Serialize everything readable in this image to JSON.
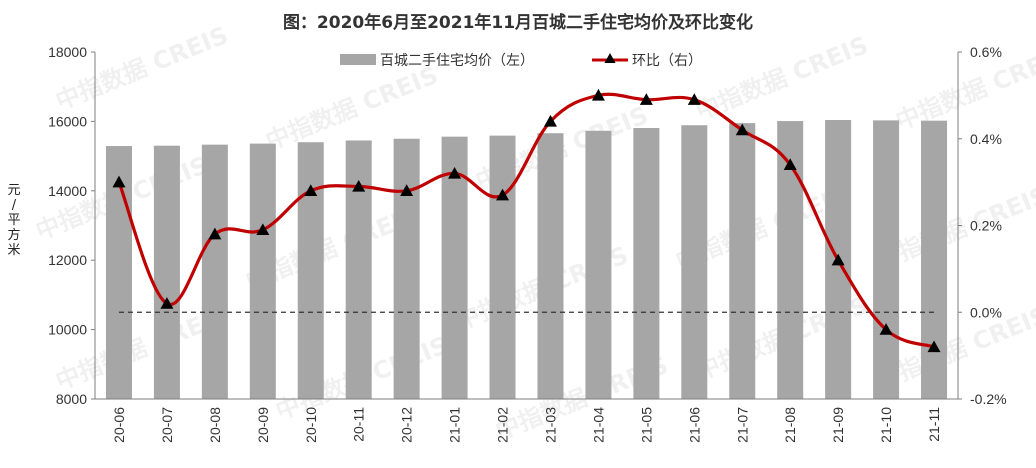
{
  "chart_data": {
    "type": "bar+line",
    "title": "图：2020年6月至2021年11月百城二手住宅均价及环比变化",
    "categories": [
      "20-06",
      "20-07",
      "20-08",
      "20-09",
      "20-10",
      "20-11",
      "20-12",
      "21-01",
      "21-02",
      "21-03",
      "21-04",
      "21-05",
      "21-06",
      "21-07",
      "21-08",
      "21-09",
      "21-10",
      "21-11"
    ],
    "series": [
      {
        "name": "百城二手住宅均价（左）",
        "type": "bar",
        "axis": "left",
        "color": "#a6a6a6",
        "values": [
          15290,
          15300,
          15330,
          15360,
          15400,
          15450,
          15500,
          15560,
          15590,
          15660,
          15730,
          15810,
          15890,
          15950,
          16010,
          16040,
          16030,
          16020
        ]
      },
      {
        "name": "环比（右）",
        "type": "line",
        "axis": "right",
        "color": "#c00000",
        "marker": "triangle",
        "values": [
          0.3,
          0.02,
          0.18,
          0.19,
          0.28,
          0.29,
          0.28,
          0.32,
          0.27,
          0.44,
          0.5,
          0.49,
          0.49,
          0.42,
          0.34,
          0.12,
          -0.04,
          -0.08
        ]
      }
    ],
    "y_left": {
      "label": "元/平方米",
      "min": 8000,
      "max": 18000,
      "ticks": [
        "8000",
        "10000",
        "12000",
        "14000",
        "16000",
        "18000"
      ]
    },
    "y_right": {
      "min": -0.2,
      "max": 0.6,
      "ticks": [
        "-0.2%",
        "0.0%",
        "0.2%",
        "0.4%",
        "0.6%"
      ]
    },
    "zero_line": {
      "style": "dashed",
      "color": "#333333"
    },
    "legend_position": "top-center",
    "grid": false,
    "watermark": "中指数据 CREIS"
  }
}
